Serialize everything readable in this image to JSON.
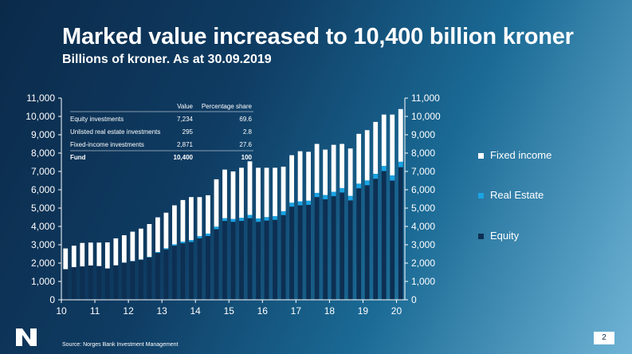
{
  "slide": {
    "title": "Marked value increased to 10,400 billion kroner",
    "subtitle": "Billions of kroner. As at 30.09.2019",
    "source": "Source: Norges Bank Investment Management",
    "page_number": "2",
    "logo_icon": "nbim-logo-icon"
  },
  "table": {
    "headers": [
      "",
      "Value",
      "Percentage share"
    ],
    "rows": [
      {
        "label": "Equity investments",
        "value": "7,234",
        "share": "69.6",
        "bold": false
      },
      {
        "label": "Unlisted real estate investments",
        "value": "295",
        "share": "2.8",
        "bold": false
      },
      {
        "label": "Fixed-income investments",
        "value": "2,871",
        "share": "27.6",
        "bold": false
      },
      {
        "label": "Fund",
        "value": "10,400",
        "share": "100",
        "bold": true
      }
    ]
  },
  "chart_data": {
    "type": "bar",
    "stacked": true,
    "x_ticks": [
      "10",
      "11",
      "12",
      "13",
      "14",
      "15",
      "16",
      "17",
      "18",
      "19",
      "20"
    ],
    "y_ticks": [
      "0",
      "1,000",
      "2,000",
      "3,000",
      "4,000",
      "5,000",
      "6,000",
      "7,000",
      "8,000",
      "9,000",
      "10,000",
      "11,000"
    ],
    "ylim": [
      0,
      11000
    ],
    "grid": false,
    "legend_position": "right",
    "colors": {
      "equity": "#0d2f52",
      "real_estate": "#1aa3e3",
      "fixed_income": "#ffffff"
    },
    "series": [
      {
        "name": "Equity",
        "values": [
          1670,
          1780,
          1820,
          1870,
          1840,
          1710,
          1880,
          2020,
          2100,
          2180,
          2310,
          2560,
          2750,
          2950,
          3080,
          3150,
          3350,
          3480,
          3850,
          4300,
          4250,
          4300,
          4450,
          4250,
          4320,
          4360,
          4620,
          5080,
          5150,
          5180,
          5600,
          5480,
          5650,
          5850,
          5420,
          6080,
          6250,
          6600,
          7020,
          6500,
          7234
        ]
      },
      {
        "name": "Real Estate",
        "values": [
          0,
          0,
          0,
          0,
          0,
          0,
          0,
          10,
          15,
          20,
          30,
          45,
          60,
          75,
          90,
          105,
          120,
          130,
          140,
          150,
          160,
          170,
          180,
          185,
          190,
          200,
          210,
          215,
          220,
          225,
          230,
          235,
          240,
          245,
          250,
          255,
          260,
          270,
          280,
          285,
          295
        ]
      },
      {
        "name": "Fixed income",
        "values": [
          1130,
          1170,
          1280,
          1250,
          1280,
          1420,
          1470,
          1490,
          1600,
          1680,
          1790,
          1890,
          1940,
          2125,
          2270,
          2345,
          2130,
          2090,
          2580,
          2650,
          2590,
          2730,
          2920,
          2765,
          2690,
          2640,
          2430,
          2590,
          2730,
          2665,
          2670,
          2475,
          2560,
          2405,
          2580,
          2715,
          2740,
          2830,
          2800,
          3315,
          2871
        ]
      }
    ]
  }
}
